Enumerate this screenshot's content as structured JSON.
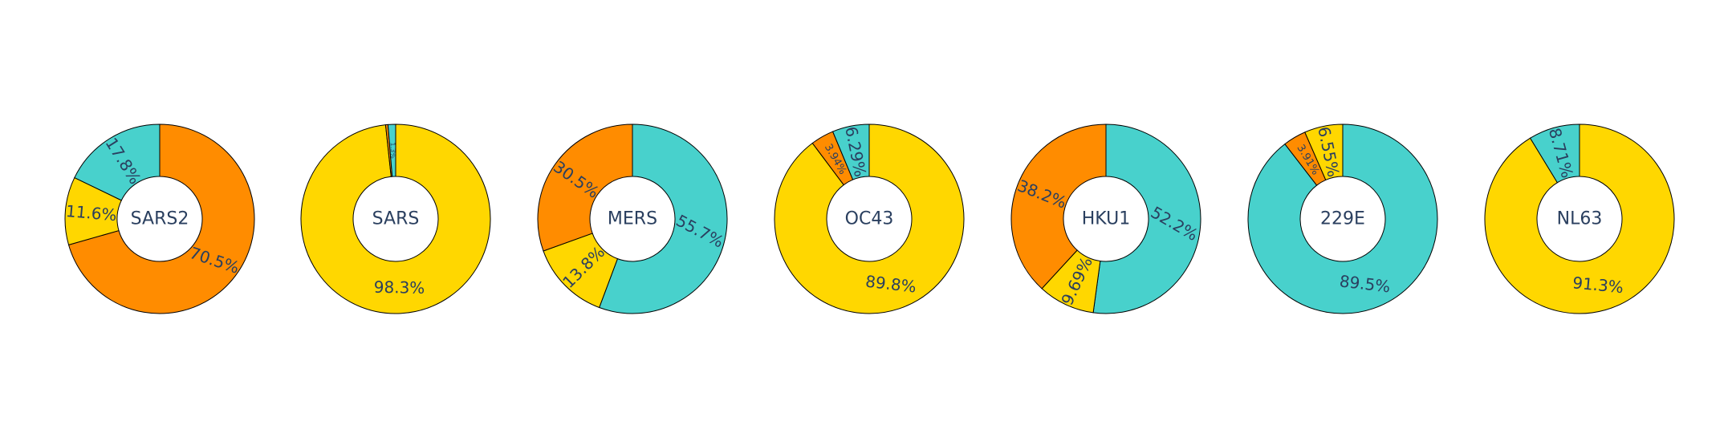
{
  "chart_data": {
    "type": "pie",
    "subtype": "donut",
    "colors": {
      "orange": "#ff8c00",
      "yellow": "#ffd700",
      "teal": "#48d1cc",
      "outline": "#000000",
      "text": "#2a3f5f"
    },
    "charts": [
      {
        "name": "SARS2",
        "slices": [
          {
            "value": 70.5,
            "label": "70.5%",
            "color": "#ff8c00"
          },
          {
            "value": 11.6,
            "label": "11.6%",
            "color": "#ffd700"
          },
          {
            "value": 17.8,
            "label": "17.8%",
            "color": "#48d1cc"
          }
        ]
      },
      {
        "name": "SARS",
        "slices": [
          {
            "value": 98.3,
            "label": "98.3%",
            "color": "#ffd700"
          },
          {
            "value": 0.4,
            "label": "",
            "color": "#ff8c00"
          },
          {
            "value": 1.3,
            "label": "1.3%",
            "color": "#48d1cc"
          }
        ]
      },
      {
        "name": "MERS",
        "slices": [
          {
            "value": 55.7,
            "label": "55.7%",
            "color": "#48d1cc"
          },
          {
            "value": 13.8,
            "label": "13.8%",
            "color": "#ffd700"
          },
          {
            "value": 30.5,
            "label": "30.5%",
            "color": "#ff8c00"
          }
        ]
      },
      {
        "name": "OC43",
        "slices": [
          {
            "value": 89.8,
            "label": "89.8%",
            "color": "#ffd700"
          },
          {
            "value": 3.94,
            "label": "3.94%",
            "color": "#ff8c00"
          },
          {
            "value": 6.29,
            "label": "6.29%",
            "color": "#48d1cc"
          }
        ]
      },
      {
        "name": "HKU1",
        "slices": [
          {
            "value": 52.2,
            "label": "52.2%",
            "color": "#48d1cc"
          },
          {
            "value": 9.69,
            "label": "9.69%",
            "color": "#ffd700"
          },
          {
            "value": 38.2,
            "label": "38.2%",
            "color": "#ff8c00"
          }
        ]
      },
      {
        "name": "229E",
        "slices": [
          {
            "value": 89.5,
            "label": "89.5%",
            "color": "#48d1cc"
          },
          {
            "value": 3.91,
            "label": "3.91%",
            "color": "#ff8c00"
          },
          {
            "value": 6.55,
            "label": "6.55%",
            "color": "#ffd700"
          }
        ]
      },
      {
        "name": "NL63",
        "slices": [
          {
            "value": 91.3,
            "label": "91.3%",
            "color": "#ffd700"
          },
          {
            "value": 8.71,
            "label": "8.71%",
            "color": "#48d1cc"
          }
        ]
      }
    ]
  }
}
